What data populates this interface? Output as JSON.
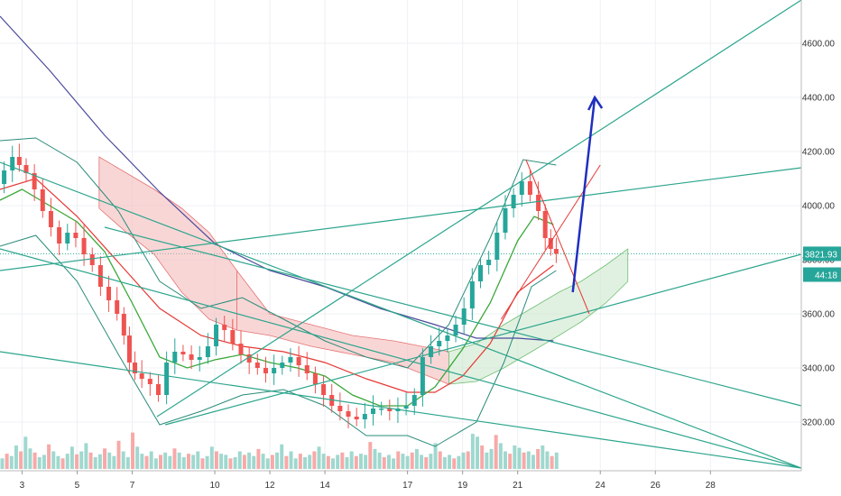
{
  "chart_data": {
    "type": "candlestick",
    "title": "",
    "xlabel": "",
    "ylabel": "",
    "ylim": [
      3020,
      4760
    ],
    "xlim": [
      2.2,
      31.3
    ],
    "y_axis_position": "right",
    "grid": true,
    "y_ticks": [
      "3200.00",
      "3400.00",
      "3600.00",
      "3800.00",
      "4000.00",
      "4200.00",
      "4400.00",
      "4600.00"
    ],
    "x_ticks": [
      {
        "label": "3",
        "x": 3
      },
      {
        "label": "5",
        "x": 5
      },
      {
        "label": "7",
        "x": 7
      },
      {
        "label": "10",
        "x": 10
      },
      {
        "label": "12",
        "x": 12
      },
      {
        "label": "14",
        "x": 14
      },
      {
        "label": "17",
        "x": 17
      },
      {
        "label": "19",
        "x": 19
      },
      {
        "label": "21",
        "x": 21
      },
      {
        "label": "24",
        "x": 24
      },
      {
        "label": "26",
        "x": 26
      },
      {
        "label": "28",
        "x": 28
      }
    ],
    "price_tags": [
      {
        "label": "3821.93",
        "value": 3821.93,
        "color": "#26a69a"
      },
      {
        "label": "44:18",
        "value": 3745,
        "color": "#26a69a"
      }
    ],
    "current_price": 3821.93,
    "colors": {
      "up": "#26a69a",
      "down": "#ef5350",
      "trendline": "#2ca58d",
      "ma_fast": "#3aa83a",
      "ma_slow": "#e53935",
      "ma_long": "#4b4b9b",
      "bollinger": "#2a8c7a",
      "cloud_bull": "#c8e6c9",
      "cloud_bear": "#f4b4b4",
      "projection_arrow": "#1f2fbf"
    },
    "price_path": [
      [
        2.2,
        4080
      ],
      [
        2.5,
        4130
      ],
      [
        2.8,
        4180
      ],
      [
        3.0,
        4150
      ],
      [
        3.3,
        4120
      ],
      [
        3.6,
        4060
      ],
      [
        3.9,
        3980
      ],
      [
        4.2,
        3920
      ],
      [
        4.5,
        3860
      ],
      [
        4.8,
        3900
      ],
      [
        5.1,
        3880
      ],
      [
        5.4,
        3820
      ],
      [
        5.7,
        3780
      ],
      [
        6.0,
        3700
      ],
      [
        6.3,
        3650
      ],
      [
        6.6,
        3600
      ],
      [
        6.8,
        3520
      ],
      [
        7.0,
        3420
      ],
      [
        7.2,
        3380
      ],
      [
        7.5,
        3360
      ],
      [
        7.8,
        3340
      ],
      [
        8.1,
        3300
      ],
      [
        8.4,
        3420
      ],
      [
        8.7,
        3460
      ],
      [
        9.0,
        3450
      ],
      [
        9.3,
        3430
      ],
      [
        9.6,
        3440
      ],
      [
        9.9,
        3480
      ],
      [
        10.2,
        3560
      ],
      [
        10.5,
        3540
      ],
      [
        10.8,
        3490
      ],
      [
        11.1,
        3450
      ],
      [
        11.4,
        3420
      ],
      [
        11.7,
        3400
      ],
      [
        12.0,
        3380
      ],
      [
        12.3,
        3400
      ],
      [
        12.6,
        3420
      ],
      [
        12.9,
        3440
      ],
      [
        13.2,
        3410
      ],
      [
        13.5,
        3380
      ],
      [
        13.8,
        3340
      ],
      [
        14.1,
        3300
      ],
      [
        14.4,
        3260
      ],
      [
        14.7,
        3240
      ],
      [
        15.0,
        3220
      ],
      [
        15.3,
        3210
      ],
      [
        15.6,
        3230
      ],
      [
        15.9,
        3250
      ],
      [
        16.2,
        3250
      ],
      [
        16.5,
        3240
      ],
      [
        16.8,
        3250
      ],
      [
        17.1,
        3260
      ],
      [
        17.4,
        3300
      ],
      [
        17.7,
        3440
      ],
      [
        18.0,
        3480
      ],
      [
        18.3,
        3500
      ],
      [
        18.6,
        3520
      ],
      [
        18.9,
        3560
      ],
      [
        19.2,
        3620
      ],
      [
        19.5,
        3720
      ],
      [
        19.8,
        3780
      ],
      [
        20.1,
        3800
      ],
      [
        20.4,
        3900
      ],
      [
        20.7,
        3990
      ],
      [
        21.0,
        4040
      ],
      [
        21.3,
        4090
      ],
      [
        21.6,
        4040
      ],
      [
        21.9,
        3980
      ],
      [
        22.1,
        3880
      ],
      [
        22.3,
        3840
      ],
      [
        22.5,
        3822
      ]
    ],
    "ma_fast": [
      [
        2.2,
        4020
      ],
      [
        3.0,
        4060
      ],
      [
        4.0,
        4000
      ],
      [
        5.0,
        3940
      ],
      [
        6.0,
        3830
      ],
      [
        7.0,
        3640
      ],
      [
        8.0,
        3440
      ],
      [
        9.0,
        3400
      ],
      [
        10.0,
        3430
      ],
      [
        11.0,
        3450
      ],
      [
        12.0,
        3420
      ],
      [
        13.0,
        3400
      ],
      [
        14.0,
        3370
      ],
      [
        15.0,
        3300
      ],
      [
        16.0,
        3260
      ],
      [
        17.0,
        3260
      ],
      [
        18.0,
        3330
      ],
      [
        19.0,
        3470
      ],
      [
        20.0,
        3640
      ],
      [
        21.0,
        3870
      ],
      [
        21.6,
        3960
      ],
      [
        22.3,
        3930
      ]
    ],
    "ma_slow": [
      [
        2.2,
        4060
      ],
      [
        3.5,
        4100
      ],
      [
        5.0,
        3960
      ],
      [
        6.5,
        3790
      ],
      [
        8.0,
        3620
      ],
      [
        9.5,
        3520
      ],
      [
        11.0,
        3480
      ],
      [
        12.5,
        3460
      ],
      [
        14.0,
        3420
      ],
      [
        15.5,
        3360
      ],
      [
        17.0,
        3310
      ],
      [
        18.0,
        3310
      ],
      [
        19.0,
        3370
      ],
      [
        20.0,
        3490
      ],
      [
        21.0,
        3680
      ],
      [
        22.3,
        3780
      ]
    ],
    "ma_long": [
      [
        2.2,
        4700
      ],
      [
        4.0,
        4500
      ],
      [
        6.0,
        4260
      ],
      [
        8.0,
        4050
      ],
      [
        10.0,
        3860
      ],
      [
        12.0,
        3760
      ],
      [
        14.0,
        3700
      ],
      [
        16.0,
        3620
      ],
      [
        18.0,
        3560
      ],
      [
        19.5,
        3510
      ],
      [
        21.0,
        3510
      ],
      [
        22.3,
        3500
      ]
    ],
    "bollinger_upper": [
      [
        2.2,
        4240
      ],
      [
        3.5,
        4250
      ],
      [
        5.0,
        4160
      ],
      [
        6.5,
        3980
      ],
      [
        8.0,
        3720
      ],
      [
        9.5,
        3620
      ],
      [
        11.0,
        3660
      ],
      [
        12.5,
        3580
      ],
      [
        14.0,
        3500
      ],
      [
        15.5,
        3440
      ],
      [
        17.0,
        3400
      ],
      [
        18.5,
        3560
      ],
      [
        20.0,
        3880
      ],
      [
        21.2,
        4170
      ],
      [
        22.4,
        4150
      ]
    ],
    "bollinger_lower": [
      [
        2.2,
        3850
      ],
      [
        3.5,
        3890
      ],
      [
        5.0,
        3720
      ],
      [
        6.5,
        3450
      ],
      [
        8.0,
        3190
      ],
      [
        9.5,
        3240
      ],
      [
        11.0,
        3300
      ],
      [
        12.5,
        3320
      ],
      [
        14.0,
        3260
      ],
      [
        15.5,
        3150
      ],
      [
        17.0,
        3150
      ],
      [
        18.0,
        3110
      ],
      [
        19.5,
        3200
      ],
      [
        20.5,
        3420
      ],
      [
        21.5,
        3700
      ],
      [
        22.4,
        3760
      ]
    ],
    "cloud_spans": [
      {
        "x": [
          5.8,
          6.8,
          7.8,
          8.8,
          9.8,
          10.8
        ],
        "top": [
          4180,
          4120,
          4060,
          3990,
          3900,
          3760
        ],
        "bottom": [
          3990,
          3900,
          3820,
          3680,
          3580,
          3540
        ],
        "kind": "bear"
      },
      {
        "x": [
          10.8,
          12.0,
          13.5,
          15.0,
          16.5,
          17.5,
          18.5
        ],
        "top": [
          3760,
          3600,
          3560,
          3520,
          3500,
          3480,
          3460
        ],
        "bottom": [
          3540,
          3520,
          3480,
          3450,
          3420,
          3380,
          3340
        ],
        "kind": "bear"
      },
      {
        "x": [
          18.5,
          19.5,
          20.5,
          21.5,
          22.5,
          23.3,
          24.2,
          25.0
        ],
        "top": [
          3460,
          3490,
          3560,
          3620,
          3680,
          3720,
          3780,
          3840
        ],
        "bottom": [
          3340,
          3350,
          3400,
          3460,
          3520,
          3570,
          3640,
          3720
        ],
        "kind": "bull"
      }
    ],
    "volume_range": [
      0,
      100
    ],
    "volume": [
      18,
      26,
      22,
      40,
      30,
      55,
      35,
      28,
      20,
      24,
      42,
      30,
      22,
      18,
      26,
      38,
      25,
      30,
      44,
      28,
      20,
      25,
      35,
      28,
      22,
      48,
      30,
      20,
      62,
      38,
      26,
      22,
      30,
      18,
      24,
      28,
      22,
      35,
      28,
      20,
      26,
      24,
      30,
      18,
      22,
      38,
      30,
      26,
      24,
      18,
      20,
      30,
      24,
      28,
      22,
      34,
      26,
      18,
      24,
      28,
      42,
      22,
      30,
      18,
      26,
      20,
      24,
      30,
      38,
      26,
      22,
      18,
      24,
      28,
      20,
      30,
      22,
      26,
      24,
      46,
      34,
      28,
      20,
      24,
      18,
      30,
      26,
      22,
      28,
      34,
      24,
      20,
      26,
      44,
      30,
      20,
      24,
      18,
      22,
      28,
      30,
      60,
      55,
      40,
      28,
      34,
      58,
      44,
      30,
      26,
      40,
      36,
      28,
      30,
      24,
      34,
      40,
      30,
      22,
      28
    ]
  },
  "annotations": {
    "projection_arrow": {
      "from": [
        23.0,
        3680
      ],
      "to": [
        23.8,
        4400
      ]
    }
  }
}
